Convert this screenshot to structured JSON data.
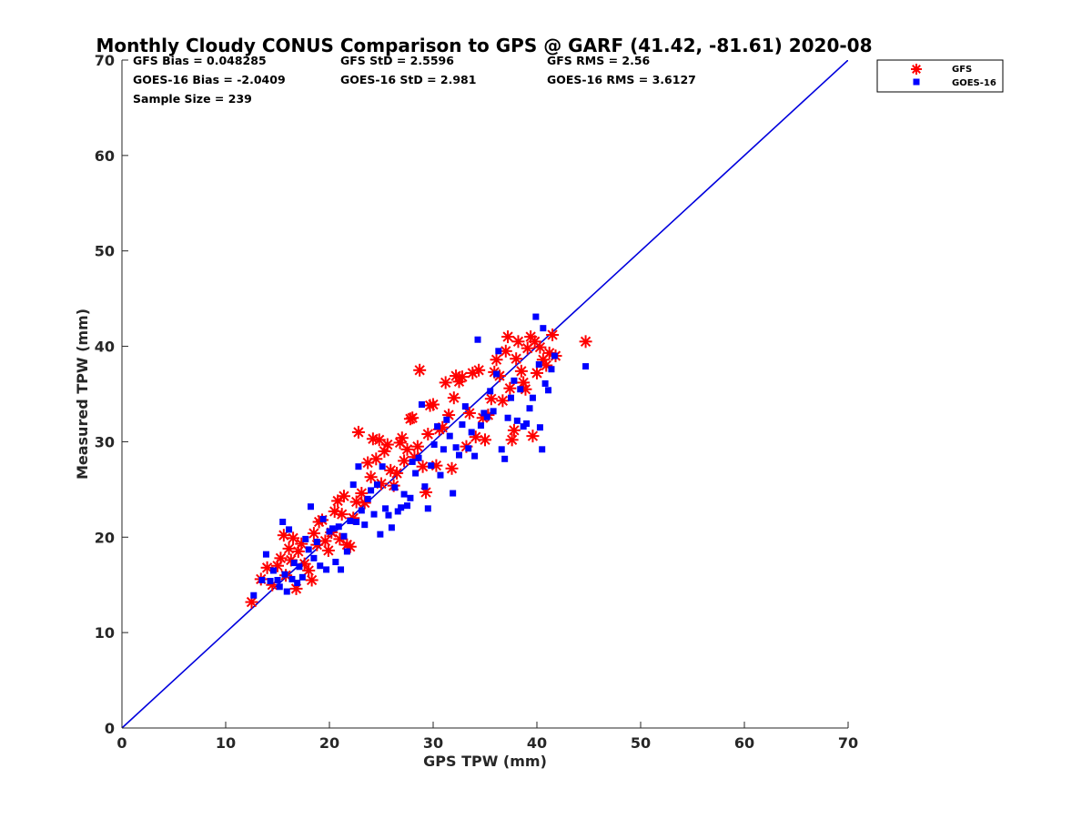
{
  "chart_data": {
    "type": "scatter",
    "title": "Monthly Cloudy CONUS Comparison to GPS @ GARF (41.42, -81.61) 2020-08",
    "xlabel": "GPS TPW (mm)",
    "ylabel": "Measured TPW (mm)",
    "xlim": [
      0,
      70
    ],
    "ylim": [
      0,
      70
    ],
    "xticks": [
      "0",
      "10",
      "20",
      "30",
      "40",
      "50",
      "60",
      "70"
    ],
    "yticks": [
      "0",
      "10",
      "20",
      "30",
      "40",
      "50",
      "60",
      "70"
    ],
    "grid": false,
    "legend_position": "top-right outside",
    "stats": {
      "gfs_bias": "GFS Bias = 0.048285",
      "gfs_std": "GFS StD = 2.5596",
      "gfs_rms": "GFS RMS = 2.56",
      "goes_bias": "GOES-16 Bias = -2.0409",
      "goes_std": "GOES-16 StD = 2.981",
      "goes_rms": "GOES-16 RMS = 3.6127",
      "sample_size": "Sample Size = 239"
    },
    "reference_line": {
      "x": [
        0,
        70
      ],
      "y": [
        0,
        70
      ],
      "color": "#0000dd"
    },
    "series": [
      {
        "name": "GFS",
        "marker": "asterisk",
        "color": "#ff0000",
        "points": [
          [
            12.5,
            13.2
          ],
          [
            13.4,
            15.6
          ],
          [
            14,
            16.8
          ],
          [
            14.5,
            15
          ],
          [
            15,
            17
          ],
          [
            15.3,
            17.8
          ],
          [
            15.6,
            20.2
          ],
          [
            15.8,
            16
          ],
          [
            16.1,
            18.8
          ],
          [
            16.3,
            17.6
          ],
          [
            16.5,
            19.9
          ],
          [
            16.8,
            14.6
          ],
          [
            17,
            18.5
          ],
          [
            17.3,
            19.3
          ],
          [
            17.6,
            17.2
          ],
          [
            18,
            16.5
          ],
          [
            18.3,
            15.5
          ],
          [
            18.5,
            20.4
          ],
          [
            18.8,
            19.2
          ],
          [
            19,
            21.6
          ],
          [
            19.3,
            21.8
          ],
          [
            19.6,
            19.6
          ],
          [
            19.9,
            18.6
          ],
          [
            20.2,
            20.5
          ],
          [
            20.5,
            22.7
          ],
          [
            20.8,
            23.8
          ],
          [
            21,
            19.8
          ],
          [
            21.2,
            22.4
          ],
          [
            21.4,
            24.3
          ],
          [
            21.7,
            19.2
          ],
          [
            22,
            19
          ],
          [
            22.3,
            22
          ],
          [
            22.6,
            23.7
          ],
          [
            22.8,
            31
          ],
          [
            23.1,
            24.6
          ],
          [
            23.4,
            23.6
          ],
          [
            23.7,
            27.8
          ],
          [
            24,
            26.3
          ],
          [
            24.2,
            30.3
          ],
          [
            24.5,
            28.2
          ],
          [
            24.8,
            30.2
          ],
          [
            25,
            25.6
          ],
          [
            25.3,
            29
          ],
          [
            25.6,
            29.7
          ],
          [
            25.9,
            27
          ],
          [
            26.2,
            25.4
          ],
          [
            26.5,
            26.7
          ],
          [
            26.8,
            29.9
          ],
          [
            27,
            30.4
          ],
          [
            27.2,
            28
          ],
          [
            27.5,
            29.2
          ],
          [
            27.8,
            32.4
          ],
          [
            28,
            32.5
          ],
          [
            28.2,
            28.4
          ],
          [
            28.5,
            29.5
          ],
          [
            28.7,
            37.5
          ],
          [
            29,
            27.4
          ],
          [
            29.3,
            24.7
          ],
          [
            29.5,
            30.8
          ],
          [
            29.7,
            33.8
          ],
          [
            30,
            33.9
          ],
          [
            30.3,
            27.5
          ],
          [
            30.6,
            31.3
          ],
          [
            30.9,
            31.5
          ],
          [
            31.2,
            36.2
          ],
          [
            31.5,
            32.8
          ],
          [
            31.8,
            27.2
          ],
          [
            32,
            34.6
          ],
          [
            32.2,
            36.9
          ],
          [
            32.5,
            36.3
          ],
          [
            32.8,
            36.8
          ],
          [
            33.2,
            29.5
          ],
          [
            33.5,
            33
          ],
          [
            33.8,
            37.2
          ],
          [
            34.1,
            30.5
          ],
          [
            34.4,
            37.5
          ],
          [
            34.8,
            32.5
          ],
          [
            35,
            30.2
          ],
          [
            35.3,
            32.8
          ],
          [
            35.6,
            34.5
          ],
          [
            35.9,
            37.3
          ],
          [
            36.1,
            38.6
          ],
          [
            36.4,
            36.9
          ],
          [
            36.7,
            34.3
          ],
          [
            37,
            39.5
          ],
          [
            37.2,
            41
          ],
          [
            37.4,
            35.6
          ],
          [
            37.6,
            30.2
          ],
          [
            37.8,
            31.2
          ],
          [
            38,
            38.7
          ],
          [
            38.2,
            40.5
          ],
          [
            38.5,
            37.4
          ],
          [
            38.7,
            36.2
          ],
          [
            38.9,
            35.5
          ],
          [
            39.1,
            39.8
          ],
          [
            39.4,
            41
          ],
          [
            39.6,
            30.6
          ],
          [
            39.8,
            40.5
          ],
          [
            40,
            37.2
          ],
          [
            40.3,
            39.9
          ],
          [
            40.6,
            38.6
          ],
          [
            40.9,
            38
          ],
          [
            41.2,
            39.3
          ],
          [
            41.5,
            41.2
          ],
          [
            41.8,
            39
          ],
          [
            44.7,
            40.5
          ]
        ]
      },
      {
        "name": "GOES-16",
        "marker": "square",
        "color": "#0000ff",
        "points": [
          [
            12.7,
            13.9
          ],
          [
            13.5,
            15.5
          ],
          [
            13.9,
            18.2
          ],
          [
            14.3,
            15.4
          ],
          [
            14.6,
            16.5
          ],
          [
            15,
            15.5
          ],
          [
            15.2,
            14.8
          ],
          [
            15.5,
            21.6
          ],
          [
            15.7,
            16.1
          ],
          [
            15.9,
            14.3
          ],
          [
            16.1,
            20.8
          ],
          [
            16.4,
            15.6
          ],
          [
            16.6,
            17.3
          ],
          [
            16.9,
            15.2
          ],
          [
            17.1,
            16.9
          ],
          [
            17.4,
            15.8
          ],
          [
            17.7,
            19.8
          ],
          [
            18,
            18.7
          ],
          [
            18.2,
            23.2
          ],
          [
            18.5,
            17.8
          ],
          [
            18.8,
            19.5
          ],
          [
            19.1,
            17
          ],
          [
            19.4,
            21.9
          ],
          [
            19.7,
            16.6
          ],
          [
            20,
            20.6
          ],
          [
            20.3,
            20.9
          ],
          [
            20.6,
            17.4
          ],
          [
            20.9,
            21.1
          ],
          [
            21.1,
            16.6
          ],
          [
            21.4,
            20.1
          ],
          [
            21.7,
            18.5
          ],
          [
            22,
            21.7
          ],
          [
            22.3,
            25.5
          ],
          [
            22.6,
            21.6
          ],
          [
            22.8,
            27.4
          ],
          [
            23.1,
            22.8
          ],
          [
            23.4,
            21.3
          ],
          [
            23.7,
            24
          ],
          [
            24,
            24.9
          ],
          [
            24.3,
            22.4
          ],
          [
            24.6,
            25.5
          ],
          [
            24.9,
            20.3
          ],
          [
            25.1,
            27.4
          ],
          [
            25.4,
            23
          ],
          [
            25.7,
            22.3
          ],
          [
            26,
            21
          ],
          [
            26.3,
            25.2
          ],
          [
            26.6,
            22.7
          ],
          [
            26.9,
            23.1
          ],
          [
            27.2,
            24.5
          ],
          [
            27.5,
            23.3
          ],
          [
            27.8,
            24.1
          ],
          [
            28,
            27.9
          ],
          [
            28.3,
            26.7
          ],
          [
            28.6,
            28.3
          ],
          [
            28.9,
            33.9
          ],
          [
            29.2,
            25.3
          ],
          [
            29.5,
            23
          ],
          [
            29.8,
            27.5
          ],
          [
            30.1,
            29.7
          ],
          [
            30.4,
            31.6
          ],
          [
            30.7,
            26.5
          ],
          [
            31,
            29.2
          ],
          [
            31.3,
            32.3
          ],
          [
            31.6,
            30.6
          ],
          [
            31.9,
            24.6
          ],
          [
            32.2,
            29.4
          ],
          [
            32.5,
            28.6
          ],
          [
            32.8,
            31.8
          ],
          [
            33.1,
            33.7
          ],
          [
            33.4,
            29.3
          ],
          [
            33.7,
            31
          ],
          [
            34,
            28.5
          ],
          [
            34.3,
            40.7
          ],
          [
            34.6,
            31.7
          ],
          [
            34.9,
            33
          ],
          [
            35.2,
            32.6
          ],
          [
            35.5,
            35.3
          ],
          [
            35.8,
            33.2
          ],
          [
            36.1,
            37.1
          ],
          [
            36.3,
            39.5
          ],
          [
            36.6,
            29.2
          ],
          [
            36.9,
            28.2
          ],
          [
            37.2,
            32.5
          ],
          [
            37.5,
            34.6
          ],
          [
            37.8,
            36.4
          ],
          [
            38.1,
            32.2
          ],
          [
            38.4,
            35.5
          ],
          [
            38.7,
            31.6
          ],
          [
            39,
            31.9
          ],
          [
            39.3,
            33.5
          ],
          [
            39.6,
            34.6
          ],
          [
            39.9,
            43.1
          ],
          [
            40.2,
            38.1
          ],
          [
            40.5,
            29.2
          ],
          [
            40.8,
            36.1
          ],
          [
            41.1,
            35.4
          ],
          [
            41.4,
            37.6
          ],
          [
            41.7,
            39
          ],
          [
            40.3,
            31.5
          ],
          [
            40.6,
            41.9
          ],
          [
            44.7,
            37.9
          ]
        ]
      }
    ]
  }
}
